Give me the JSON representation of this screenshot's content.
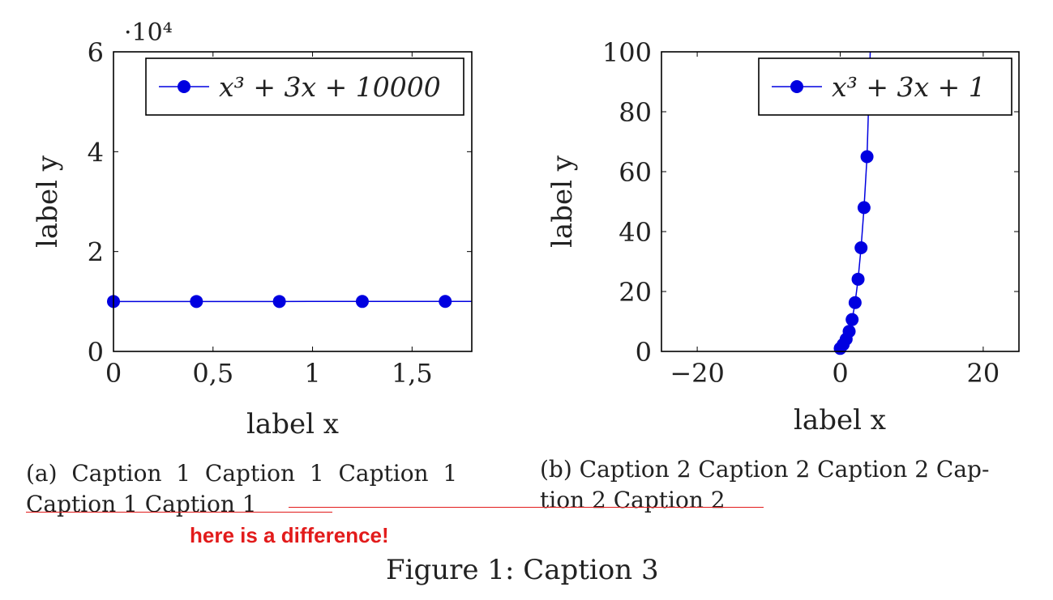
{
  "chart_data": [
    {
      "type": "line",
      "xlabel": "label x",
      "ylabel": "label y",
      "xlim": [
        0,
        1.8
      ],
      "ylim": [
        0,
        60000
      ],
      "xticks": [
        0,
        0.5,
        1,
        1.5
      ],
      "xtick_labels": [
        "0",
        "0,5",
        "1",
        "1,5"
      ],
      "yticks": [
        0,
        20000,
        40000,
        60000
      ],
      "ytick_labels": [
        "0",
        "2",
        "4",
        "6"
      ],
      "scale_label": "·10⁴",
      "legend_position": "top-right",
      "color": "#0000e0",
      "series": [
        {
          "name": "x³ + 3x + 10000",
          "x": [
            0,
            0.4167,
            0.8333,
            1.25,
            1.6667
          ],
          "y": [
            10000,
            10001.3,
            10003.1,
            10005.7,
            10009.6
          ],
          "line_x_end": 1.8
        }
      ]
    },
    {
      "type": "line",
      "xlabel": "label x",
      "ylabel": "label y",
      "xlim": [
        -25,
        25
      ],
      "ylim": [
        0,
        100
      ],
      "xticks": [
        -20,
        0,
        20
      ],
      "xtick_labels": [
        "−20",
        "0",
        "20"
      ],
      "yticks": [
        0,
        20,
        40,
        60,
        80,
        100
      ],
      "ytick_labels": [
        "0",
        "20",
        "40",
        "60",
        "80",
        "100"
      ],
      "legend_position": "top-right",
      "color": "#0000e0",
      "series": [
        {
          "name": "x³ + 3x + 1",
          "x": [
            0,
            0.4167,
            0.8333,
            1.25,
            1.6667,
            2.0833,
            2.5,
            2.9167,
            3.3333,
            3.75
          ],
          "y": [
            1,
            2.32,
            4.08,
            6.7,
            10.63,
            16.29,
            24.1,
            34.6,
            48.0,
            65.0
          ],
          "line_to": [
            4.2,
            100
          ]
        }
      ]
    }
  ],
  "captions": {
    "a": "(a)  Caption  1  Caption  1  Caption  1",
    "a_line2": "Caption 1 Caption 1",
    "b": "(b) Caption 2 Caption 2 Caption 2 Cap-",
    "b_line2": "tion 2 Caption 2",
    "figure": "Figure 1: Caption 3"
  },
  "annotation": {
    "text": "here is a difference!",
    "color": "#e21b1b"
  }
}
